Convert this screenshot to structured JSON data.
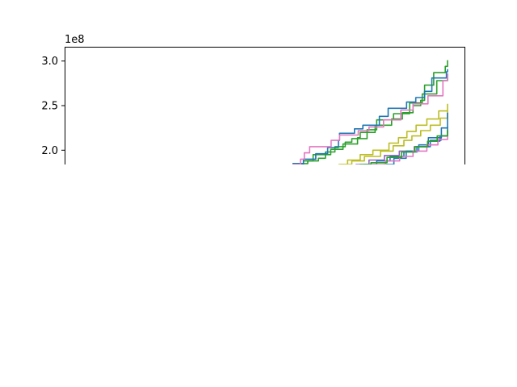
{
  "chart_data": {
    "type": "line",
    "title": "",
    "xlabel": "",
    "ylabel": "",
    "y_offset_label": "1e8",
    "ylim": [
      1.84,
      3.16
    ],
    "xlim": [
      0,
      100
    ],
    "y_ticks": [
      {
        "value": 2.0,
        "label": "2.0"
      },
      {
        "value": 2.5,
        "label": "2.5"
      },
      {
        "value": 3.0,
        "label": "3.0"
      }
    ],
    "x_ticks": [],
    "grid": false,
    "legend": "none",
    "clip_bottom_value": 1.84,
    "series": [
      {
        "color": "#2ca02c",
        "points": [
          [
            59.5,
            1.84
          ],
          [
            62.4,
            1.88
          ],
          [
            66.3,
            1.91
          ],
          [
            68.1,
            1.95
          ],
          [
            69.5,
            2.01
          ],
          [
            72.7,
            2.07
          ],
          [
            76.5,
            2.14
          ],
          [
            77.2,
            2.2
          ],
          [
            81.1,
            2.28
          ],
          [
            85.4,
            2.35
          ],
          [
            88.2,
            2.42
          ],
          [
            91.0,
            2.5
          ],
          [
            93.0,
            2.56
          ],
          [
            94.0,
            2.63
          ],
          [
            97.2,
            2.78
          ],
          [
            100.0,
            2.86
          ]
        ]
      },
      {
        "color": "#2ca02c",
        "points": [
          [
            59.5,
            1.85
          ],
          [
            63.5,
            1.88
          ],
          [
            64.9,
            1.95
          ],
          [
            68.1,
            1.98
          ],
          [
            70.6,
            2.04
          ],
          [
            73.3,
            2.09
          ],
          [
            75.0,
            2.13
          ],
          [
            79.0,
            2.23
          ],
          [
            81.5,
            2.34
          ],
          [
            85.9,
            2.41
          ],
          [
            90.1,
            2.53
          ],
          [
            93.4,
            2.63
          ],
          [
            94.0,
            2.73
          ],
          [
            96.4,
            2.87
          ],
          [
            99.4,
            2.94
          ],
          [
            100.0,
            3.01
          ]
        ]
      },
      {
        "color": "#1f77b4",
        "points": [
          [
            59.5,
            1.85
          ],
          [
            62.4,
            1.9
          ],
          [
            65.6,
            1.96
          ],
          [
            68.7,
            2.03
          ],
          [
            71.5,
            2.11
          ],
          [
            71.8,
            2.19
          ],
          [
            75.7,
            2.24
          ],
          [
            77.9,
            2.28
          ],
          [
            82.2,
            2.38
          ],
          [
            84.5,
            2.47
          ],
          [
            89.3,
            2.54
          ],
          [
            91.7,
            2.59
          ],
          [
            94.0,
            2.66
          ],
          [
            95.9,
            2.81
          ],
          [
            99.7,
            2.88
          ],
          [
            100.0,
            2.91
          ]
        ]
      },
      {
        "color": "#e377c2",
        "points": [
          [
            59.5,
            1.84
          ],
          [
            61.6,
            1.9
          ],
          [
            62.6,
            1.97
          ],
          [
            64.0,
            2.04
          ],
          [
            69.6,
            2.11
          ],
          [
            71.8,
            2.17
          ],
          [
            76.7,
            2.22
          ],
          [
            79.5,
            2.26
          ],
          [
            83.3,
            2.34
          ],
          [
            87.8,
            2.45
          ],
          [
            91.0,
            2.52
          ],
          [
            94.9,
            2.61
          ],
          [
            98.8,
            2.78
          ],
          [
            100.0,
            2.86
          ]
        ]
      },
      {
        "color": "#bcbd22",
        "points": [
          [
            71.5,
            1.84
          ],
          [
            73.9,
            1.89
          ],
          [
            77.2,
            1.95
          ],
          [
            80.5,
            2.0
          ],
          [
            84.7,
            2.08
          ],
          [
            87.2,
            2.14
          ],
          [
            89.4,
            2.21
          ],
          [
            91.8,
            2.28
          ],
          [
            94.6,
            2.35
          ],
          [
            97.7,
            2.44
          ],
          [
            100.0,
            2.52
          ]
        ]
      },
      {
        "color": "#bcbd22",
        "points": [
          [
            72.0,
            1.84
          ],
          [
            75.0,
            1.88
          ],
          [
            78.3,
            1.93
          ],
          [
            82.5,
            1.99
          ],
          [
            85.8,
            2.05
          ],
          [
            88.6,
            2.11
          ],
          [
            90.7,
            2.16
          ],
          [
            93.0,
            2.22
          ],
          [
            95.5,
            2.28
          ],
          [
            98.1,
            2.36
          ],
          [
            100.0,
            2.44
          ]
        ]
      },
      {
        "color": "#9467bd",
        "points": [
          [
            76.0,
            1.84
          ],
          [
            79.5,
            1.89
          ],
          [
            83.5,
            1.94
          ],
          [
            87.4,
            1.99
          ],
          [
            91.3,
            2.04
          ],
          [
            95.0,
            2.1
          ],
          [
            98.0,
            2.16
          ],
          [
            100.0,
            2.22
          ]
        ]
      },
      {
        "color": "#1f77b4",
        "points": [
          [
            78.1,
            1.84
          ],
          [
            81.5,
            1.88
          ],
          [
            85.0,
            1.93
          ],
          [
            88.6,
            1.98
          ],
          [
            92.0,
            2.04
          ],
          [
            95.5,
            2.11
          ],
          [
            98.3,
            2.16
          ],
          [
            100.0,
            2.26
          ]
        ]
      },
      {
        "color": "#1f77b4",
        "points": [
          [
            83.3,
            1.84
          ],
          [
            86.0,
            1.91
          ],
          [
            89.2,
            1.99
          ],
          [
            92.5,
            2.06
          ],
          [
            95.0,
            2.14
          ],
          [
            98.4,
            2.25
          ],
          [
            100.0,
            2.42
          ]
        ]
      },
      {
        "color": "#e377c2",
        "points": [
          [
            80.0,
            1.84
          ],
          [
            83.8,
            1.88
          ],
          [
            87.5,
            1.93
          ],
          [
            91.0,
            1.99
          ],
          [
            94.6,
            2.06
          ],
          [
            97.5,
            2.12
          ],
          [
            100.0,
            2.19
          ]
        ]
      },
      {
        "color": "#2ca02c",
        "points": [
          [
            77.0,
            1.84
          ],
          [
            80.0,
            1.86
          ],
          [
            84.2,
            1.92
          ],
          [
            88.0,
            1.98
          ],
          [
            91.5,
            2.04
          ],
          [
            94.8,
            2.1
          ],
          [
            97.3,
            2.16
          ],
          [
            100.0,
            2.23
          ]
        ]
      }
    ]
  }
}
